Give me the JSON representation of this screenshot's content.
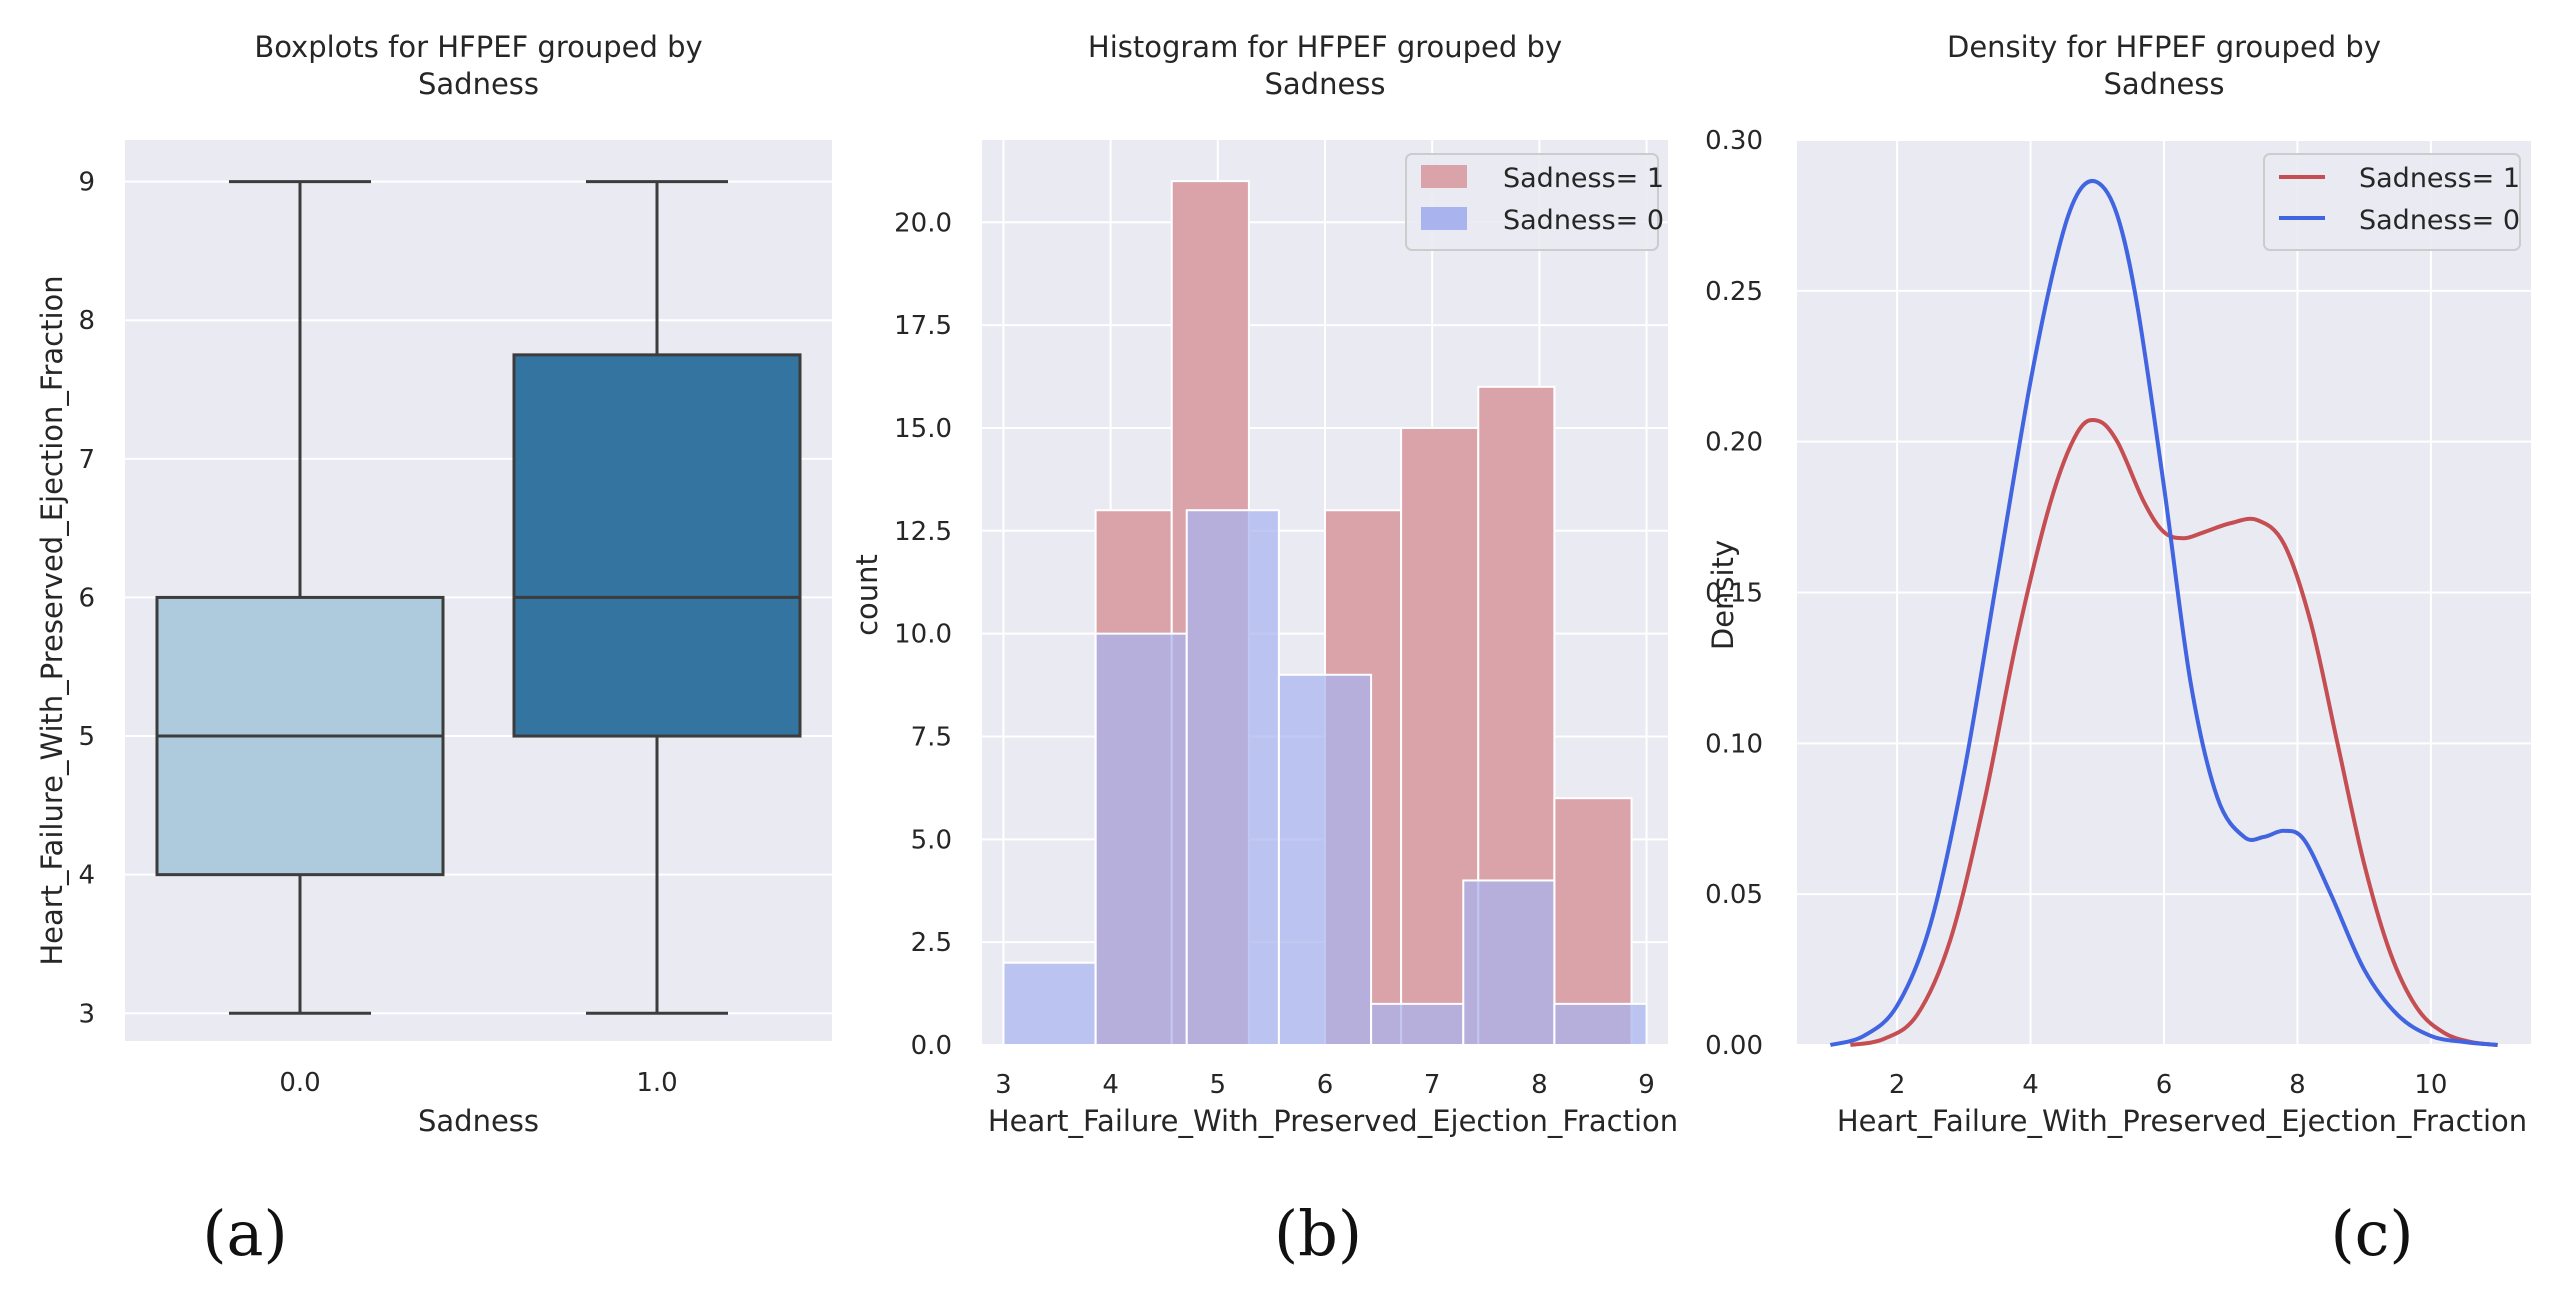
{
  "colors": {
    "panel_bg": "#eaeaf2",
    "grid": "#ffffff",
    "text": "#262626",
    "box_edge": "#3c3c3c",
    "box_0": "#aecbdd",
    "box_1": "#3374a1",
    "hist_1": "#d9a3a9",
    "hist_0": "#a9b4ee",
    "overlap": "#9e8fc6",
    "kde_1": "#c44e52",
    "kde_0": "#4164e0"
  },
  "chart_data": [
    {
      "type": "box",
      "panel_label": "(a)",
      "title": [
        "Boxplots for HFPEF grouped by",
        "Sadness"
      ],
      "xlabel": "Sadness",
      "ylabel": "Heart_Failure_With_Preserved_Ejection_Fraction",
      "ylim": [
        2.8,
        9.3
      ],
      "yticks": [
        3,
        4,
        5,
        6,
        7,
        8,
        9
      ],
      "categories": [
        "0.0",
        "1.0"
      ],
      "boxes": [
        {
          "name": "0.0",
          "min": 3,
          "q1": 4,
          "median": 5,
          "q3": 6,
          "max": 9
        },
        {
          "name": "1.0",
          "min": 3,
          "q1": 5,
          "median": 6,
          "q3": 7.75,
          "max": 9
        }
      ]
    },
    {
      "type": "histogram",
      "panel_label": "(b)",
      "title": [
        "Histogram for HFPEF grouped by",
        "Sadness"
      ],
      "xlabel": "Heart_Failure_With_Preserved_Ejection_Fraction",
      "ylabel": "count",
      "xlim": [
        2.8,
        9.2
      ],
      "ylim": [
        0,
        22
      ],
      "xticks": [
        3,
        4,
        5,
        6,
        7,
        8,
        9
      ],
      "yticks": [
        0.0,
        2.5,
        5.0,
        7.5,
        10.0,
        12.5,
        15.0,
        17.5,
        20.0
      ],
      "legend": [
        "Sadness= 1",
        "Sadness= 0"
      ],
      "legend_position": "top-right",
      "series": [
        {
          "name": "Sadness= 1",
          "bins": [
            {
              "x0": 3.86,
              "x1": 4.57,
              "count": 13
            },
            {
              "x0": 4.57,
              "x1": 5.29,
              "count": 21
            },
            {
              "x0": 6.0,
              "x1": 6.71,
              "count": 13
            },
            {
              "x0": 6.71,
              "x1": 7.43,
              "count": 15
            },
            {
              "x0": 7.43,
              "x1": 8.14,
              "count": 16
            },
            {
              "x0": 8.14,
              "x1": 8.86,
              "count": 6
            }
          ]
        },
        {
          "name": "Sadness= 0",
          "bins": [
            {
              "x0": 3.0,
              "x1": 3.86,
              "count": 2
            },
            {
              "x0": 3.86,
              "x1": 4.71,
              "count": 10
            },
            {
              "x0": 4.71,
              "x1": 5.57,
              "count": 13
            },
            {
              "x0": 5.57,
              "x1": 6.43,
              "count": 9
            },
            {
              "x0": 6.43,
              "x1": 7.29,
              "count": 1
            },
            {
              "x0": 7.29,
              "x1": 8.14,
              "count": 4
            },
            {
              "x0": 8.14,
              "x1": 9.0,
              "count": 1
            }
          ]
        }
      ]
    },
    {
      "type": "line",
      "panel_label": "(c)",
      "title": [
        "Density for HFPEF grouped by",
        "Sadness"
      ],
      "xlabel": "Heart_Failure_With_Preserved_Ejection_Fraction",
      "ylabel": "Density",
      "xlim": [
        0.5,
        11.5
      ],
      "ylim": [
        0,
        0.3
      ],
      "xticks": [
        2,
        4,
        6,
        8,
        10
      ],
      "yticks": [
        0.0,
        0.05,
        0.1,
        0.15,
        0.2,
        0.25,
        0.3
      ],
      "legend": [
        "Sadness= 1",
        "Sadness= 0"
      ],
      "legend_position": "top-right",
      "series": [
        {
          "name": "Sadness= 1",
          "x": [
            1.3,
            1.8,
            2.3,
            2.8,
            3.3,
            3.8,
            4.3,
            4.7,
            5.0,
            5.3,
            5.7,
            6.0,
            6.3,
            6.6,
            7.0,
            7.4,
            7.8,
            8.2,
            8.6,
            9.0,
            9.4,
            9.8,
            10.2,
            10.6,
            11.0
          ],
          "values": [
            0.0,
            0.002,
            0.01,
            0.035,
            0.08,
            0.135,
            0.18,
            0.203,
            0.207,
            0.2,
            0.18,
            0.17,
            0.168,
            0.17,
            0.173,
            0.174,
            0.166,
            0.14,
            0.1,
            0.06,
            0.03,
            0.012,
            0.004,
            0.001,
            0.0
          ]
        },
        {
          "name": "Sadness= 0",
          "x": [
            1.0,
            1.5,
            2.0,
            2.5,
            3.0,
            3.5,
            4.0,
            4.4,
            4.7,
            5.0,
            5.3,
            5.6,
            6.0,
            6.4,
            6.8,
            7.2,
            7.5,
            7.8,
            8.1,
            8.5,
            9.0,
            9.5,
            10.0,
            10.5,
            11.0
          ],
          "values": [
            0.0,
            0.003,
            0.013,
            0.04,
            0.09,
            0.155,
            0.22,
            0.262,
            0.282,
            0.286,
            0.275,
            0.245,
            0.185,
            0.12,
            0.082,
            0.069,
            0.069,
            0.071,
            0.068,
            0.05,
            0.025,
            0.01,
            0.003,
            0.001,
            0.0
          ]
        }
      ]
    }
  ]
}
